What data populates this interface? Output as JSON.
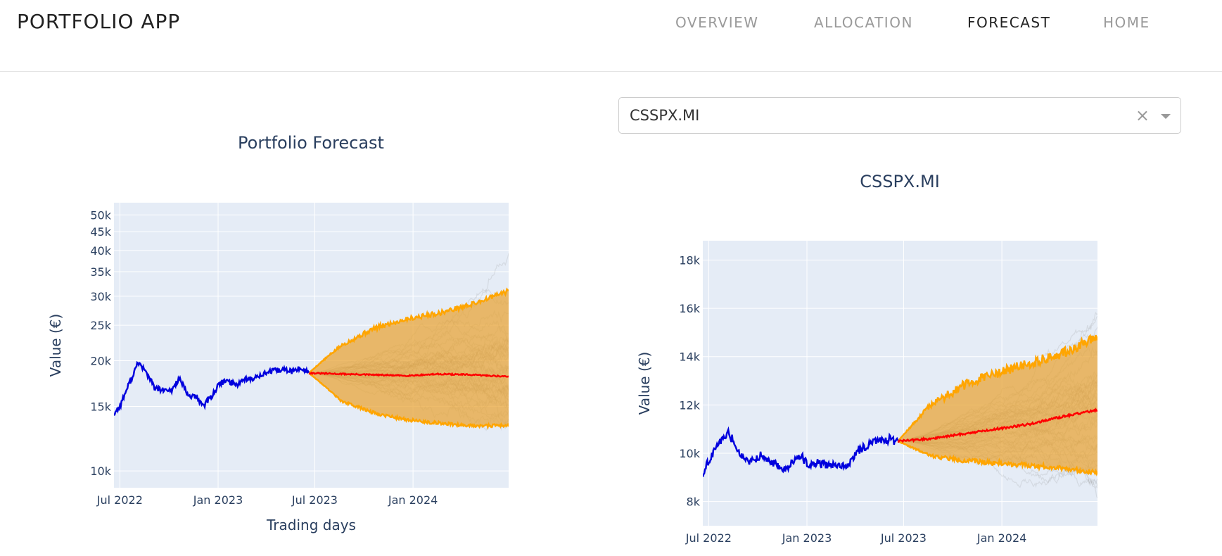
{
  "navbar": {
    "brand": "PORTFOLIO APP",
    "links": [
      {
        "label": "OVERVIEW",
        "active": false
      },
      {
        "label": "ALLOCATION",
        "active": false
      },
      {
        "label": "FORECAST",
        "active": true
      },
      {
        "label": "HOME",
        "active": false
      }
    ]
  },
  "dropdown": {
    "selected": "CSSPX.MI",
    "clear_icon": "close-icon",
    "arrow_icon": "caret-down-icon"
  },
  "colors": {
    "history": "#0000dd",
    "median": "#ff0000",
    "band": "#ffa500",
    "band_fill": "#e8a53a",
    "simulations": "#9a9a9a",
    "plot_bg": "#e5ecf6",
    "grid": "#ffffff",
    "text": "#2a3f5f"
  },
  "chart_data": [
    {
      "type": "line",
      "title": "Portfolio Forecast",
      "xlabel": "Trading days",
      "ylabel": "Value (€)",
      "yscale": "log",
      "ylim": [
        9000,
        54000
      ],
      "xlim": [
        "2022-06-20",
        "2024-06-28"
      ],
      "grid": true,
      "yticks": [
        10000,
        15000,
        20000,
        25000,
        30000,
        35000,
        40000,
        45000,
        50000
      ],
      "ytick_labels": [
        "10k",
        "15k",
        "20k",
        "25k",
        "30k",
        "35k",
        "40k",
        "45k",
        "50k"
      ],
      "xticks": [
        "2022-07-01",
        "2023-01-01",
        "2023-07-01",
        "2024-01-01"
      ],
      "xtick_labels": [
        "Jul 2022",
        "Jan 2023",
        "Jul 2023",
        "Jan 2024"
      ],
      "series": [
        {
          "role": "history",
          "x": [
            "2022-06-20",
            "2022-07-01",
            "2022-07-20",
            "2022-08-05",
            "2022-08-20",
            "2022-09-05",
            "2022-09-20",
            "2022-10-05",
            "2022-10-20",
            "2022-11-05",
            "2022-11-20",
            "2022-12-05",
            "2022-12-20",
            "2023-01-05",
            "2023-01-20",
            "2023-02-05",
            "2023-02-20",
            "2023-03-05",
            "2023-03-20",
            "2023-04-05",
            "2023-04-20",
            "2023-05-05",
            "2023-05-20",
            "2023-06-05",
            "2023-06-20"
          ],
          "y": [
            14300,
            15000,
            17500,
            19800,
            18500,
            16800,
            16600,
            16500,
            17900,
            16100,
            15900,
            15100,
            16000,
            17400,
            17600,
            17200,
            17900,
            17700,
            18300,
            18600,
            18800,
            18900,
            18700,
            19100,
            18600
          ]
        },
        {
          "role": "median",
          "x": [
            "2023-06-20",
            "2023-08-20",
            "2023-10-20",
            "2023-12-20",
            "2024-02-20",
            "2024-04-20",
            "2024-06-28"
          ],
          "y": [
            18500,
            18400,
            18300,
            18200,
            18400,
            18300,
            18100
          ]
        },
        {
          "role": "upper",
          "x": [
            "2023-06-20",
            "2023-08-20",
            "2023-10-20",
            "2023-12-20",
            "2024-02-20",
            "2024-04-20",
            "2024-06-28"
          ],
          "y": [
            18500,
            22000,
            24500,
            26000,
            27000,
            28500,
            31000
          ]
        },
        {
          "role": "lower",
          "x": [
            "2023-06-20",
            "2023-08-20",
            "2023-10-20",
            "2023-12-20",
            "2024-02-20",
            "2024-04-20",
            "2024-06-28"
          ],
          "y": [
            18500,
            15500,
            14400,
            13800,
            13500,
            13300,
            13300
          ]
        }
      ]
    },
    {
      "type": "line",
      "title": "CSSPX.MI",
      "xlabel": "",
      "ylabel": "Value (€)",
      "ylim": [
        7000,
        18800
      ],
      "xlim": [
        "2022-06-20",
        "2024-06-28"
      ],
      "grid": true,
      "yticks": [
        8000,
        10000,
        12000,
        14000,
        16000,
        18000
      ],
      "ytick_labels": [
        "8k",
        "10k",
        "12k",
        "14k",
        "16k",
        "18k"
      ],
      "xticks": [
        "2022-07-01",
        "2023-01-01",
        "2023-07-01",
        "2024-01-01"
      ],
      "xtick_labels": [
        "Jul 2022",
        "Jan 2023",
        "Jul 2023",
        "Jan 2024"
      ],
      "series": [
        {
          "role": "history",
          "x": [
            "2022-06-20",
            "2022-07-01",
            "2022-07-20",
            "2022-08-05",
            "2022-08-20",
            "2022-09-05",
            "2022-09-20",
            "2022-10-05",
            "2022-10-20",
            "2022-11-05",
            "2022-11-20",
            "2022-12-05",
            "2022-12-20",
            "2023-01-05",
            "2023-01-20",
            "2023-02-05",
            "2023-02-20",
            "2023-03-05",
            "2023-03-20",
            "2023-04-05",
            "2023-04-20",
            "2023-05-05",
            "2023-05-20",
            "2023-06-05",
            "2023-06-20"
          ],
          "y": [
            9100,
            9700,
            10400,
            10850,
            10400,
            9700,
            9650,
            9900,
            9800,
            9500,
            9350,
            9600,
            9900,
            9500,
            9600,
            9500,
            9500,
            9500,
            9500,
            10100,
            10300,
            10500,
            10550,
            10580,
            10500
          ]
        },
        {
          "role": "median",
          "x": [
            "2023-06-20",
            "2023-08-20",
            "2023-10-20",
            "2023-12-20",
            "2024-02-20",
            "2024-04-20",
            "2024-06-28"
          ],
          "y": [
            10500,
            10600,
            10800,
            11000,
            11200,
            11500,
            11800
          ]
        },
        {
          "role": "upper",
          "x": [
            "2023-06-20",
            "2023-08-20",
            "2023-10-20",
            "2023-12-20",
            "2024-02-20",
            "2024-04-20",
            "2024-06-28"
          ],
          "y": [
            10500,
            12000,
            12800,
            13300,
            13700,
            14100,
            14800
          ]
        },
        {
          "role": "lower",
          "x": [
            "2023-06-20",
            "2023-08-20",
            "2023-10-20",
            "2023-12-20",
            "2024-02-20",
            "2024-04-20",
            "2024-06-28"
          ],
          "y": [
            10500,
            9900,
            9700,
            9600,
            9500,
            9400,
            9200
          ]
        }
      ]
    }
  ]
}
